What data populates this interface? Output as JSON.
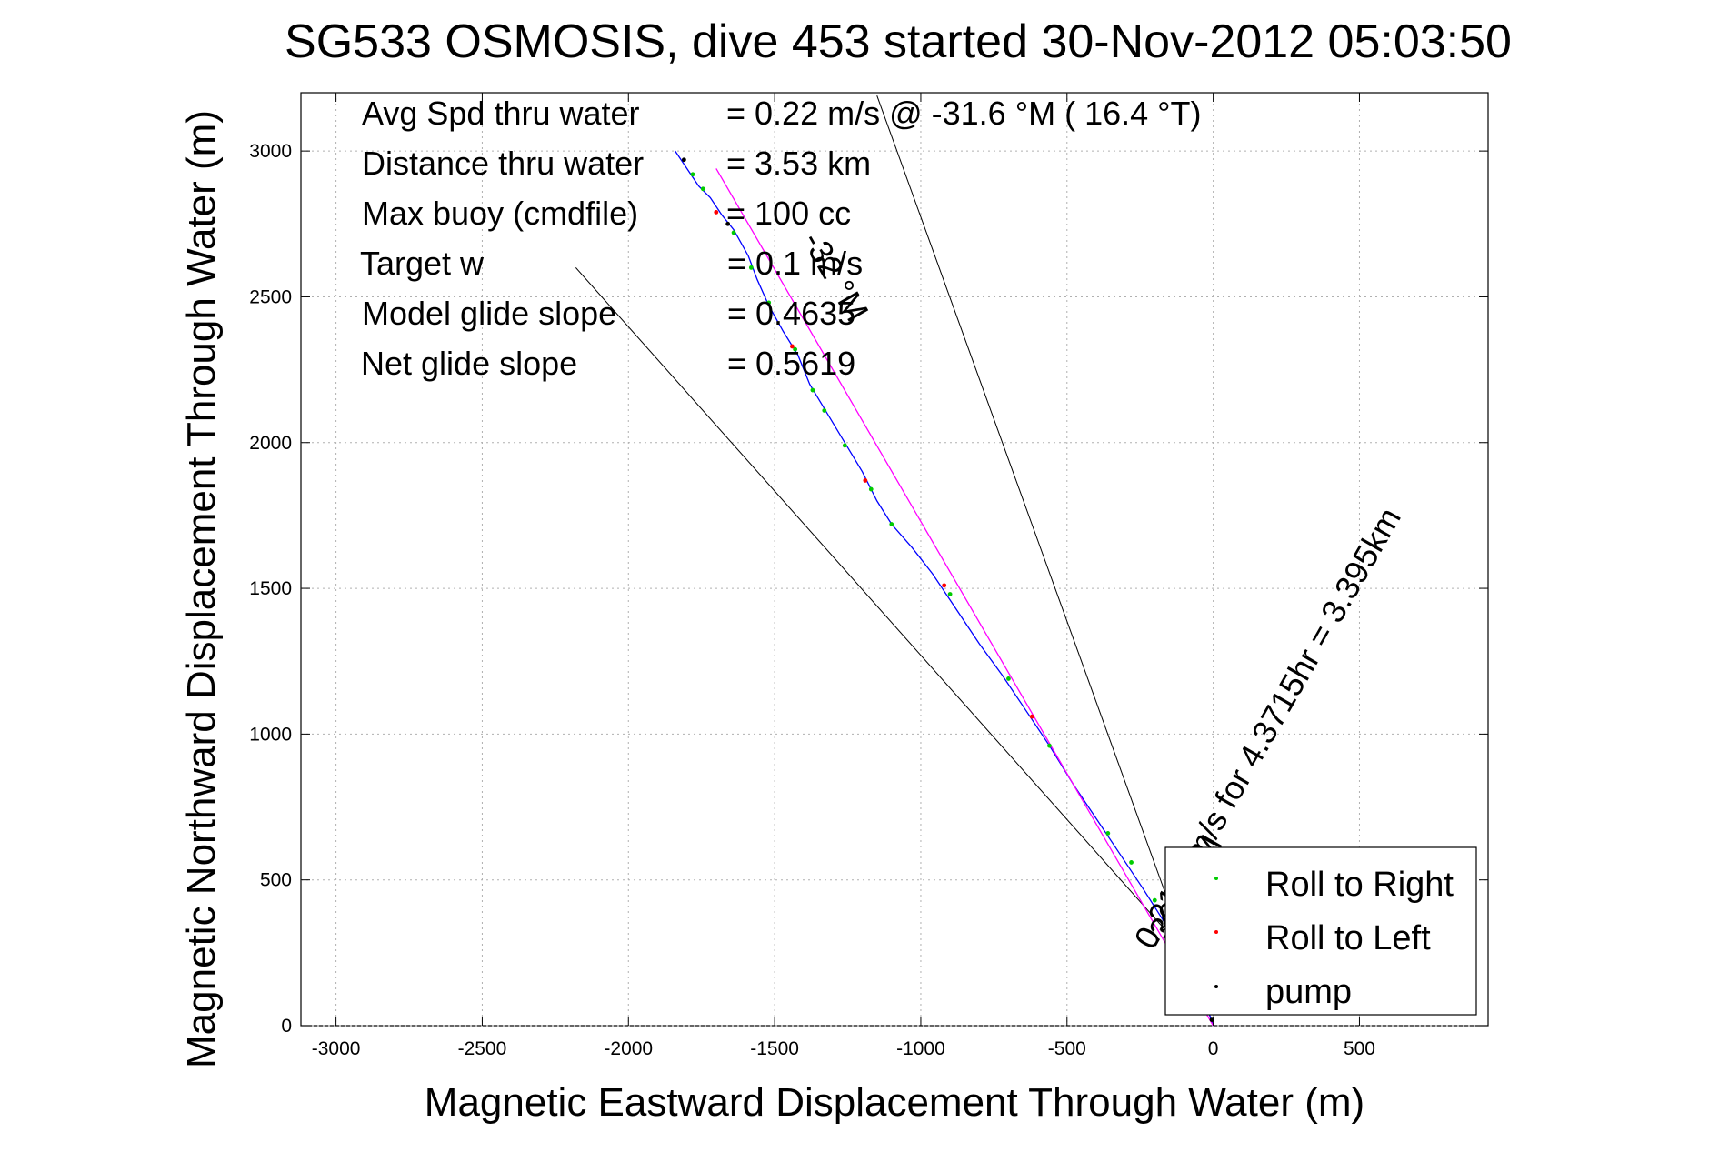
{
  "chart_data": {
    "type": "line",
    "title": "SG533 OSMOSIS, dive 453 started 30-Nov-2012 05:03:50",
    "xlabel": "Magnetic Eastward Displacement Through Water (m)",
    "ylabel": "Magnetic Northward Displacement Through Water (m)",
    "xlim": [
      -3120,
      940
    ],
    "ylim": [
      0,
      3200
    ],
    "xticks": [
      -3000,
      -2500,
      -2000,
      -1500,
      -1000,
      -500,
      0,
      500
    ],
    "yticks": [
      0,
      500,
      1000,
      1500,
      2000,
      2500,
      3000
    ],
    "grid": true,
    "annotations": {
      "rows": [
        {
          "label": "Avg Spd thru water",
          "value": "=  0.22 m/s @ -31.6 °M ( 16.4 °T)"
        },
        {
          "label": "Distance thru water",
          "value": "=  3.53 km"
        },
        {
          "label": "Max buoy (cmdfile)",
          "value": "= 100 cc"
        },
        {
          "label": "Target w",
          "value": "= 0.1 m/s"
        },
        {
          "label": "Model glide slope",
          "value": "= 0.4635"
        },
        {
          "label": "Net glide slope",
          "value": "= 0.5619"
        }
      ],
      "heading_label": "-32 °M",
      "vector_label": "0.2157m/s for 4.3715hr = 3.395km",
      "short_label": "-30.1 °M"
    },
    "series": [
      {
        "name": "track",
        "color": "#0000ff",
        "x": [
          0,
          -20,
          -60,
          -110,
          -170,
          -240,
          -320,
          -400,
          -480,
          -560,
          -640,
          -720,
          -800,
          -880,
          -960,
          -1030,
          -1100,
          -1150,
          -1200,
          -1260,
          -1320,
          -1380,
          -1420,
          -1470,
          -1520,
          -1560,
          -1590,
          -1640,
          -1680,
          -1720,
          -1760,
          -1800,
          -1840
        ],
        "y": [
          0,
          60,
          160,
          260,
          360,
          470,
          590,
          710,
          830,
          960,
          1080,
          1200,
          1310,
          1430,
          1550,
          1640,
          1720,
          1800,
          1900,
          2000,
          2100,
          2200,
          2300,
          2380,
          2470,
          2560,
          2640,
          2730,
          2780,
          2840,
          2880,
          2940,
          3000
        ]
      },
      {
        "name": "net",
        "color": "#ff00ff",
        "x": [
          0,
          -1700
        ],
        "y": [
          0,
          2940
        ]
      }
    ],
    "guide_lines": [
      {
        "x": [
          -50,
          -2180
        ],
        "y": [
          200,
          2600
        ]
      },
      {
        "x": [
          0,
          -1150
        ],
        "y": [
          0,
          3190
        ]
      }
    ],
    "legend": {
      "position": "bottom-right",
      "entries": [
        {
          "label": "Roll to Right",
          "color": "#00cc00"
        },
        {
          "label": "Roll to Left",
          "color": "#ff0000"
        },
        {
          "label": "pump",
          "color": "#000000"
        }
      ]
    },
    "markers": {
      "right": [
        [
          -1780,
          2920
        ],
        [
          -1745,
          2870
        ],
        [
          -1640,
          2720
        ],
        [
          -1580,
          2600
        ],
        [
          -1520,
          2480
        ],
        [
          -1430,
          2320
        ],
        [
          -1370,
          2180
        ],
        [
          -1330,
          2110
        ],
        [
          -1260,
          1990
        ],
        [
          -1170,
          1840
        ],
        [
          -1100,
          1720
        ],
        [
          -900,
          1480
        ],
        [
          -700,
          1190
        ],
        [
          -560,
          960
        ],
        [
          -360,
          660
        ],
        [
          -280,
          560
        ],
        [
          -200,
          430
        ],
        [
          -150,
          360
        ],
        [
          -100,
          280
        ],
        [
          -80,
          240
        ],
        [
          -50,
          180
        ]
      ],
      "left": [
        [
          -1700,
          2790
        ],
        [
          -1440,
          2330
        ],
        [
          -1190,
          1870
        ],
        [
          -920,
          1510
        ],
        [
          -620,
          1060
        ]
      ],
      "pump": [
        [
          -20,
          60
        ],
        [
          -5,
          20
        ],
        [
          -1810,
          2970
        ],
        [
          -1660,
          2750
        ]
      ]
    }
  }
}
